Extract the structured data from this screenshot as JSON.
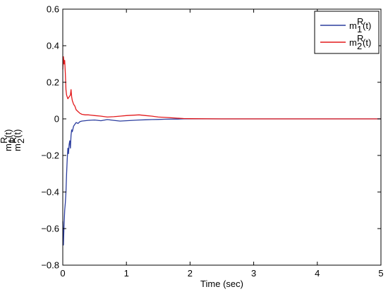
{
  "chart_data": {
    "type": "line",
    "title": "",
    "xlabel": "Time (sec)",
    "ylabel_lines": [
      {
        "base": "m",
        "sub": "1",
        "sup": "R",
        "tail": "(t)"
      },
      {
        "base": "m",
        "sub": "2",
        "sup": "R",
        "tail": "(t)"
      }
    ],
    "xlim": [
      0,
      5
    ],
    "ylim": [
      -0.8,
      0.6
    ],
    "xticks": [
      0,
      1,
      2,
      3,
      4,
      5
    ],
    "yticks": [
      -0.8,
      -0.6,
      -0.4,
      -0.2,
      0,
      0.2,
      0.4,
      0.6
    ],
    "xtick_labels": [
      "0",
      "1",
      "2",
      "3",
      "4",
      "5"
    ],
    "ytick_labels": [
      "−0.8",
      "−0.6",
      "−0.4",
      "−0.2",
      "0",
      "0.2",
      "0.4",
      "0.6"
    ],
    "grid": false,
    "legend": "top-right",
    "series": [
      {
        "legend": {
          "base": "m",
          "sub": "1",
          "sup": "R",
          "tail": "(t)"
        },
        "color": "#2b3d9e",
        "x": [
          0,
          0.01,
          0.02,
          0.03,
          0.04,
          0.05,
          0.06,
          0.07,
          0.08,
          0.09,
          0.1,
          0.11,
          0.12,
          0.13,
          0.14,
          0.15,
          0.17,
          0.19,
          0.21,
          0.24,
          0.27,
          0.3,
          0.35,
          0.4,
          0.5,
          0.6,
          0.7,
          0.8,
          0.9,
          1.0,
          1.1,
          1.2,
          1.3,
          1.4,
          1.5,
          1.6,
          1.7,
          1.8,
          1.9,
          2.0,
          2.5,
          3.0,
          4.0,
          5.0
        ],
        "y": [
          -0.56,
          -0.69,
          -0.58,
          -0.5,
          -0.46,
          -0.4,
          -0.3,
          -0.22,
          -0.16,
          -0.19,
          -0.14,
          -0.12,
          -0.16,
          -0.09,
          -0.06,
          -0.07,
          -0.04,
          -0.03,
          -0.02,
          -0.025,
          -0.015,
          -0.012,
          -0.01,
          -0.008,
          -0.006,
          -0.01,
          -0.004,
          -0.008,
          -0.012,
          -0.01,
          -0.008,
          -0.006,
          -0.005,
          -0.004,
          -0.003,
          -0.002,
          -0.001,
          -0.001,
          0.0,
          0.0,
          0.0,
          0.0,
          0.0,
          0.0
        ]
      },
      {
        "legend": {
          "base": "m",
          "sub": "2",
          "sup": "R",
          "tail": "(t)"
        },
        "color": "#e31a1c",
        "x": [
          0,
          0.01,
          0.02,
          0.03,
          0.04,
          0.05,
          0.06,
          0.07,
          0.08,
          0.1,
          0.12,
          0.13,
          0.14,
          0.15,
          0.17,
          0.19,
          0.21,
          0.24,
          0.27,
          0.3,
          0.35,
          0.4,
          0.5,
          0.6,
          0.7,
          0.8,
          0.9,
          1.0,
          1.1,
          1.2,
          1.3,
          1.4,
          1.5,
          1.6,
          1.7,
          1.8,
          1.9,
          2.0,
          2.5,
          3.0,
          4.0,
          5.0
        ],
        "y": [
          0.27,
          0.34,
          0.3,
          0.32,
          0.25,
          0.16,
          0.13,
          0.12,
          0.11,
          0.12,
          0.13,
          0.16,
          0.12,
          0.1,
          0.08,
          0.07,
          0.05,
          0.04,
          0.03,
          0.025,
          0.022,
          0.022,
          0.018,
          0.015,
          0.01,
          0.012,
          0.015,
          0.018,
          0.02,
          0.022,
          0.018,
          0.015,
          0.01,
          0.008,
          0.006,
          0.004,
          0.002,
          0.001,
          0.0,
          0.0,
          0.0,
          0.0
        ]
      }
    ]
  }
}
